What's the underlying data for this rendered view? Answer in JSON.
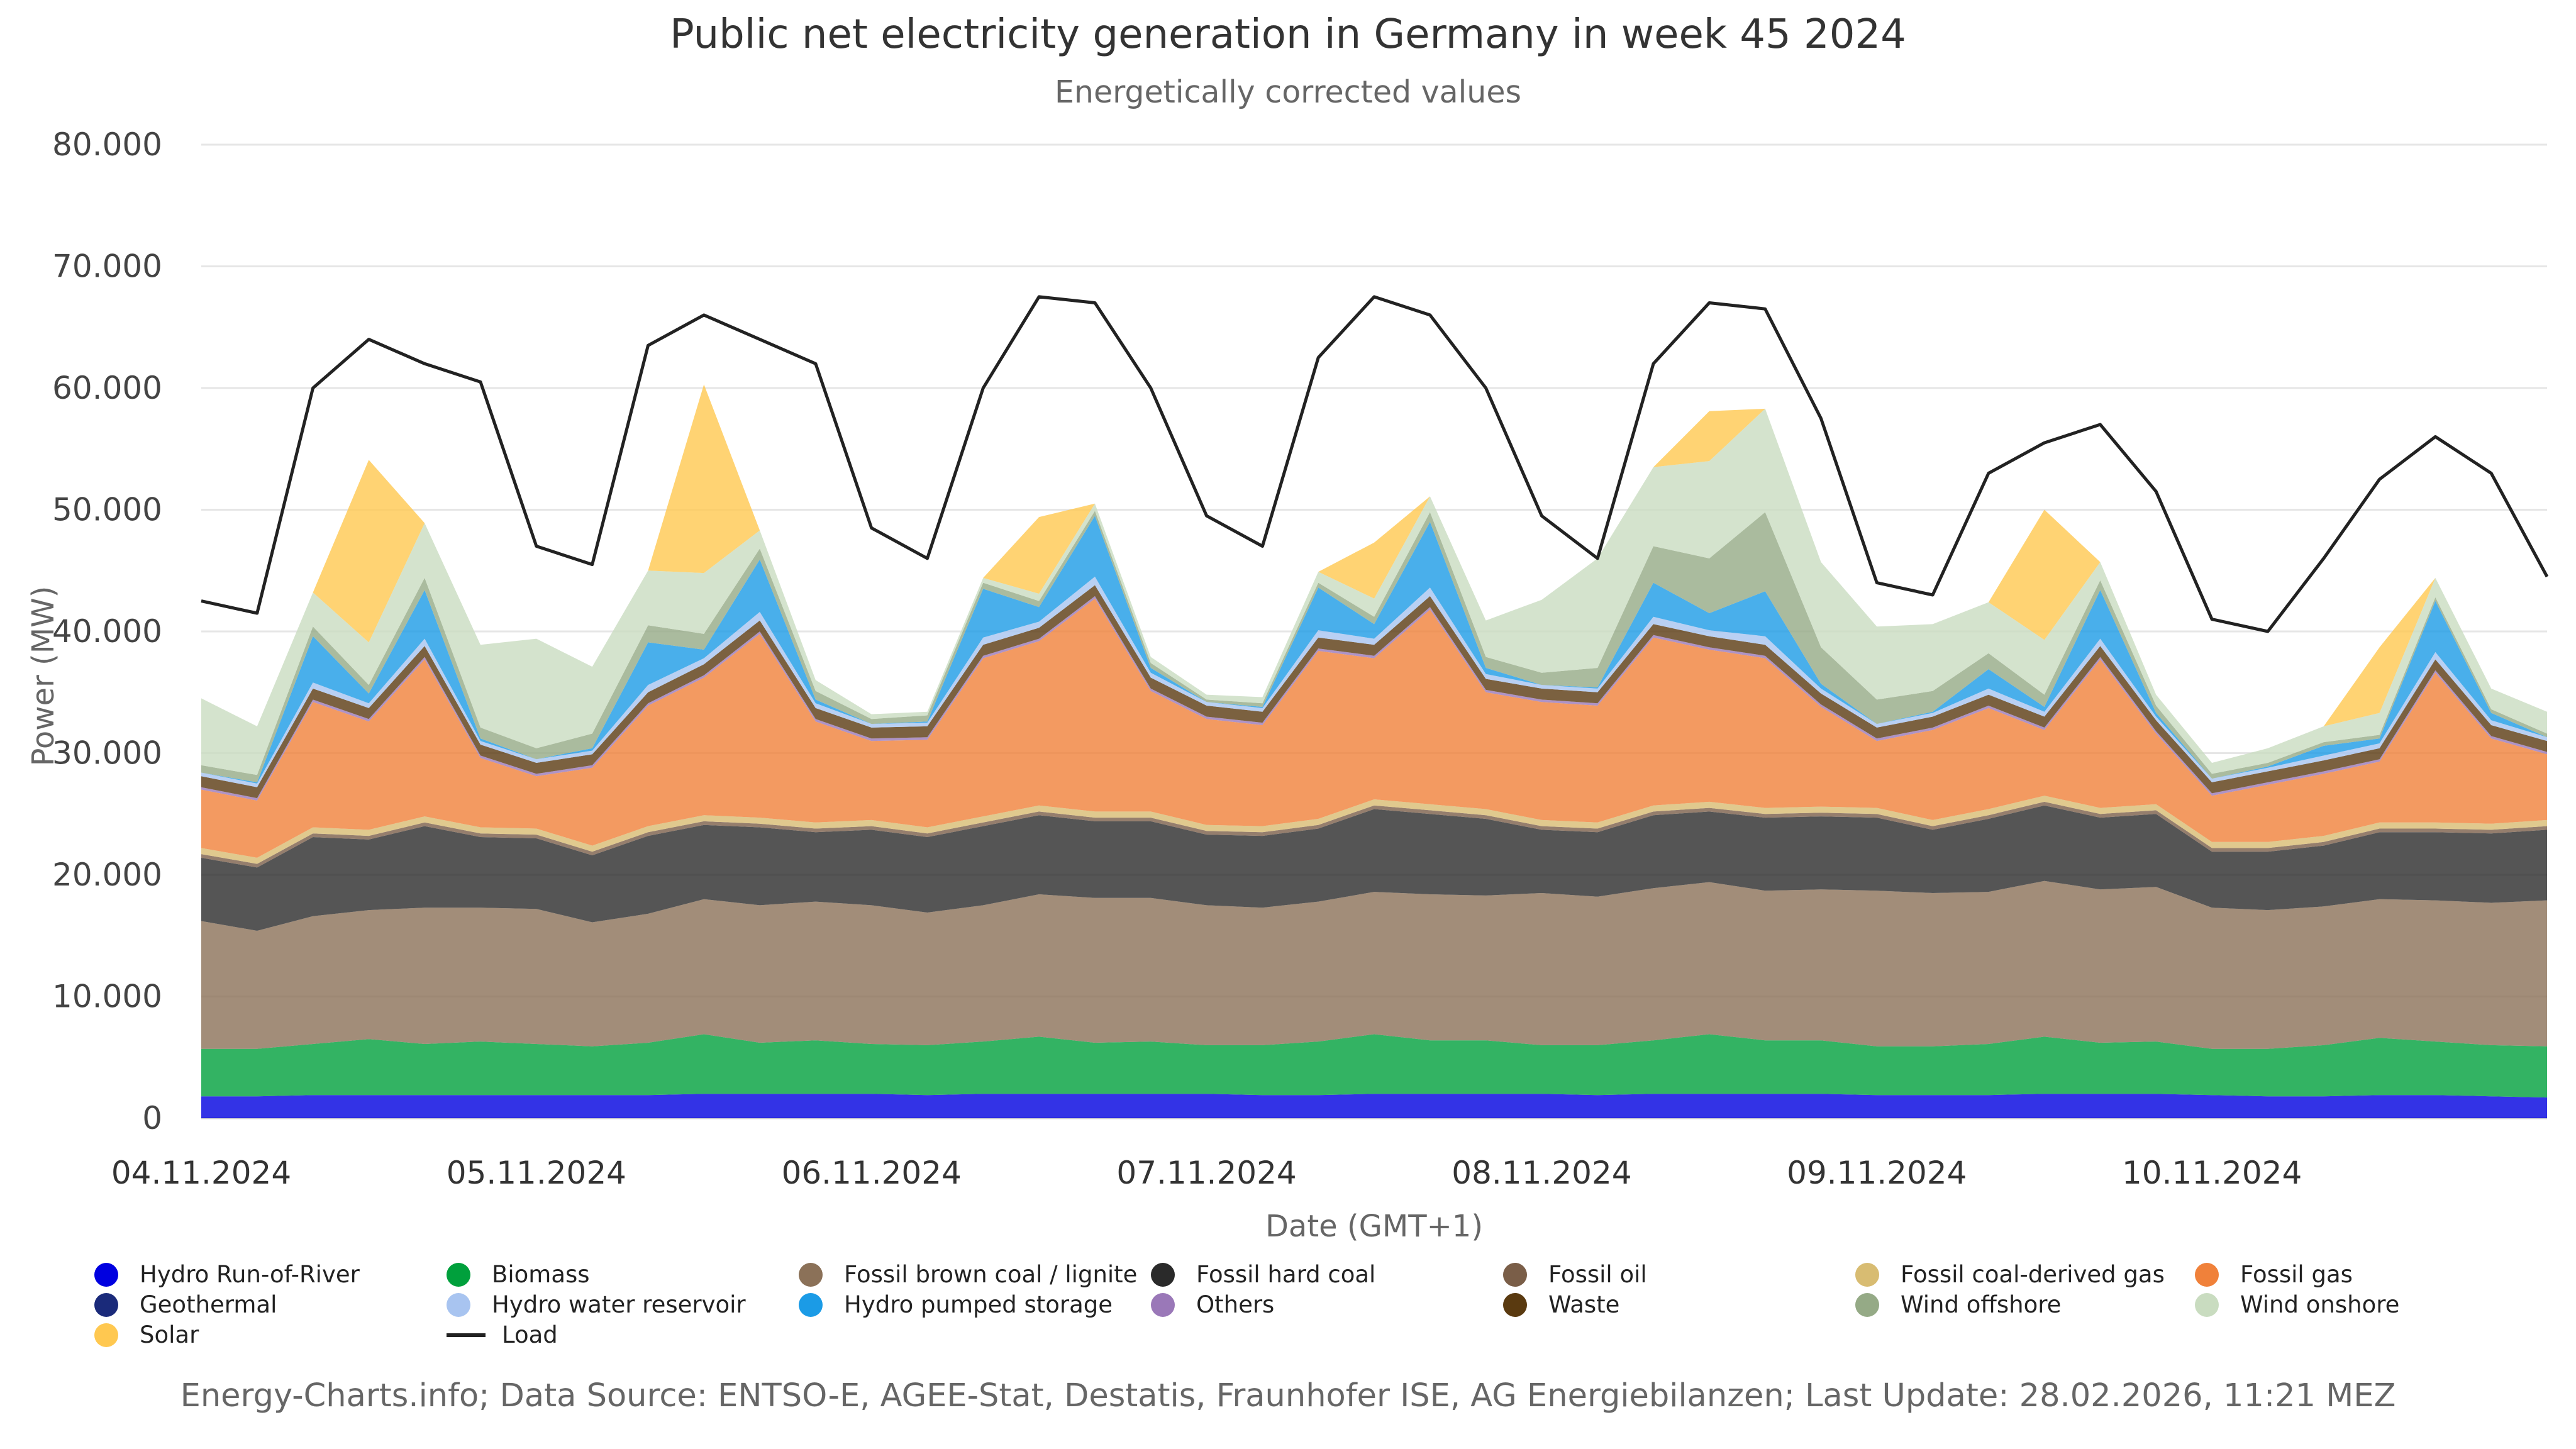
{
  "title": "Public net electricity generation in Germany in week 45 2024",
  "subtitle": "Energetically corrected values",
  "footer": "Energy-Charts.info; Data Source: ENTSO-E, AGEE-Stat, Destatis, Fraunhofer ISE, AG Energiebilanzen; Last Update: 28.02.2026, 11:21 MEZ",
  "chart_data": {
    "type": "area",
    "stacked": true,
    "title": "Public net electricity generation in Germany in week 45 2024",
    "subtitle": "Energetically corrected values",
    "xlabel": "Date (GMT+1)",
    "ylabel": "Power (MW)",
    "ylim": [
      0,
      80000
    ],
    "y_ticks": [
      "0",
      "10.000",
      "20.000",
      "30.000",
      "40.000",
      "50.000",
      "60.000",
      "70.000",
      "80.000"
    ],
    "x_ticks": [
      "04.11.2024",
      "05.11.2024",
      "06.11.2024",
      "07.11.2024",
      "08.11.2024",
      "09.11.2024",
      "10.11.2024"
    ],
    "x": [
      "04.11 00:00",
      "04.11 04:00",
      "04.11 08:00",
      "04.11 12:00",
      "04.11 16:00",
      "04.11 20:00",
      "05.11 00:00",
      "05.11 04:00",
      "05.11 08:00",
      "05.11 12:00",
      "05.11 16:00",
      "05.11 20:00",
      "06.11 00:00",
      "06.11 04:00",
      "06.11 08:00",
      "06.11 12:00",
      "06.11 16:00",
      "06.11 20:00",
      "07.11 00:00",
      "07.11 04:00",
      "07.11 08:00",
      "07.11 12:00",
      "07.11 16:00",
      "07.11 20:00",
      "08.11 00:00",
      "08.11 04:00",
      "08.11 08:00",
      "08.11 12:00",
      "08.11 16:00",
      "08.11 20:00",
      "09.11 00:00",
      "09.11 04:00",
      "09.11 08:00",
      "09.11 12:00",
      "09.11 16:00",
      "09.11 20:00",
      "10.11 00:00",
      "10.11 04:00",
      "10.11 08:00",
      "10.11 12:00",
      "10.11 16:00",
      "10.11 20:00",
      "10.11 24:00"
    ],
    "grid": true,
    "legend_position": "bottom",
    "series": [
      {
        "name": "Hydro Run-of-River",
        "color": "#0000e0",
        "in_legend": true,
        "values": [
          1800,
          1800,
          1900,
          1900,
          1900,
          1900,
          1900,
          1900,
          1900,
          2000,
          2000,
          2000,
          2000,
          1900,
          2000,
          2000,
          2000,
          2000,
          2000,
          1900,
          1900,
          2000,
          2000,
          2000,
          2000,
          1900,
          2000,
          2000,
          2000,
          2000,
          1900,
          1900,
          1900,
          2000,
          2000,
          2000,
          1900,
          1800,
          1800,
          1900,
          1900,
          1800,
          1700
        ]
      },
      {
        "name": "Biomass",
        "color": "#00a03c",
        "in_legend": true,
        "values": [
          3900,
          3900,
          4200,
          4600,
          4200,
          4400,
          4200,
          4000,
          4300,
          4900,
          4200,
          4400,
          4100,
          4100,
          4300,
          4700,
          4200,
          4300,
          4000,
          4100,
          4400,
          4900,
          4400,
          4400,
          4000,
          4100,
          4400,
          4900,
          4400,
          4400,
          4000,
          4000,
          4200,
          4700,
          4200,
          4300,
          3800,
          3900,
          4200,
          4700,
          4400,
          4200,
          4200
        ]
      },
      {
        "name": "Fossil brown coal / lignite",
        "color": "#8b7158",
        "in_legend": true,
        "values": [
          10500,
          9700,
          10500,
          10600,
          11200,
          11000,
          11100,
          10200,
          10600,
          11100,
          11300,
          11400,
          11400,
          10900,
          11200,
          11700,
          11900,
          11800,
          11500,
          11300,
          11500,
          11700,
          12000,
          11900,
          12500,
          12200,
          12500,
          12500,
          12300,
          12400,
          12800,
          12600,
          12500,
          12800,
          12600,
          12700,
          11600,
          11400,
          11400,
          11400,
          11600,
          11700,
          12000
        ]
      },
      {
        "name": "Fossil hard coal",
        "color": "#2a2a2a",
        "in_legend": true,
        "values": [
          5200,
          5200,
          6500,
          5800,
          6700,
          5800,
          5800,
          5500,
          6400,
          6100,
          6400,
          5700,
          6200,
          6200,
          6500,
          6500,
          6300,
          6300,
          5800,
          5900,
          6000,
          6800,
          6600,
          6300,
          5200,
          5300,
          6000,
          5800,
          6000,
          6000,
          6000,
          5200,
          6000,
          6200,
          5900,
          6000,
          4600,
          4800,
          5000,
          5500,
          5600,
          5700,
          5800
        ]
      },
      {
        "name": "Fossil oil",
        "color": "#7a5e48",
        "in_legend": true,
        "values": [
          300,
          300,
          300,
          300,
          300,
          300,
          300,
          300,
          300,
          300,
          300,
          300,
          300,
          300,
          300,
          300,
          300,
          300,
          300,
          300,
          300,
          300,
          300,
          300,
          300,
          300,
          300,
          300,
          300,
          300,
          300,
          300,
          300,
          300,
          300,
          300,
          300,
          300,
          300,
          300,
          300,
          300,
          300
        ]
      },
      {
        "name": "Fossil coal-derived gas",
        "color": "#d8bc72",
        "in_legend": true,
        "values": [
          500,
          500,
          500,
          500,
          500,
          500,
          500,
          500,
          500,
          500,
          500,
          500,
          500,
          500,
          500,
          500,
          500,
          500,
          500,
          500,
          500,
          500,
          500,
          500,
          500,
          500,
          500,
          500,
          500,
          500,
          500,
          500,
          500,
          500,
          500,
          500,
          500,
          500,
          500,
          500,
          500,
          500,
          500
        ]
      },
      {
        "name": "Fossil gas",
        "color": "#f0813a",
        "in_legend": true,
        "values": [
          4800,
          4700,
          10300,
          8900,
          12900,
          5700,
          4300,
          6400,
          9900,
          11300,
          15100,
          8300,
          6500,
          7200,
          13000,
          13500,
          17500,
          9900,
          8700,
          8300,
          13800,
          11600,
          16000,
          9600,
          9700,
          9600,
          13800,
          12500,
          12300,
          8200,
          5500,
          7400,
          8300,
          5400,
          12200,
          5800,
          3800,
          4700,
          5100,
          5000,
          12300,
          7000,
          5400
        ]
      },
      {
        "name": "Others",
        "color": "#9a78b8",
        "in_legend": true,
        "values": [
          200,
          200,
          200,
          200,
          200,
          200,
          200,
          200,
          200,
          200,
          200,
          200,
          200,
          200,
          200,
          200,
          200,
          200,
          200,
          200,
          200,
          200,
          200,
          200,
          200,
          200,
          200,
          200,
          200,
          200,
          200,
          200,
          200,
          200,
          200,
          200,
          200,
          200,
          200,
          200,
          200,
          200,
          200
        ]
      },
      {
        "name": "Waste",
        "color": "#5a3a10",
        "in_legend": true,
        "values": [
          900,
          900,
          900,
          900,
          900,
          900,
          900,
          900,
          900,
          900,
          900,
          900,
          900,
          900,
          900,
          900,
          900,
          900,
          900,
          900,
          900,
          900,
          900,
          900,
          900,
          900,
          900,
          900,
          900,
          900,
          900,
          900,
          900,
          900,
          900,
          900,
          900,
          900,
          900,
          900,
          900,
          900,
          900
        ]
      },
      {
        "name": "Hydro water reservoir",
        "color": "#a8c4f0",
        "in_legend": true,
        "values": [
          300,
          300,
          500,
          400,
          600,
          300,
          300,
          300,
          600,
          500,
          700,
          400,
          300,
          300,
          600,
          500,
          700,
          400,
          300,
          300,
          600,
          500,
          700,
          400,
          300,
          300,
          600,
          500,
          700,
          400,
          300,
          300,
          500,
          400,
          600,
          300,
          300,
          300,
          400,
          400,
          600,
          400,
          300
        ]
      },
      {
        "name": "Hydro pumped storage",
        "color": "#1b9be6",
        "in_legend": true,
        "values": [
          0,
          100,
          3800,
          800,
          4000,
          200,
          0,
          200,
          3500,
          700,
          4300,
          300,
          0,
          100,
          4000,
          1200,
          5000,
          400,
          0,
          100,
          3500,
          1200,
          5400,
          500,
          0,
          100,
          2800,
          1400,
          3700,
          400,
          0,
          100,
          1600,
          400,
          4000,
          300,
          0,
          100,
          800,
          400,
          4200,
          600,
          0
        ]
      },
      {
        "name": "Wind offshore",
        "color": "#95aa86",
        "in_legend": true,
        "values": [
          600,
          600,
          800,
          700,
          1000,
          900,
          900,
          1200,
          1400,
          1300,
          900,
          700,
          400,
          500,
          500,
          500,
          400,
          400,
          200,
          300,
          400,
          600,
          800,
          900,
          1000,
          1600,
          3000,
          4500,
          6500,
          3000,
          2000,
          1700,
          1300,
          1000,
          800,
          600,
          400,
          300,
          300,
          300,
          300,
          300,
          300
        ]
      },
      {
        "name": "Wind onshore",
        "color": "#c9dcc0",
        "in_legend": true,
        "values": [
          5500,
          4000,
          2800,
          3500,
          4500,
          6800,
          9000,
          5500,
          4500,
          5000,
          1500,
          900,
          400,
          300,
          400,
          600,
          600,
          500,
          400,
          500,
          900,
          1500,
          1300,
          3000,
          6000,
          9000,
          6500,
          8000,
          8500,
          7000,
          6000,
          5500,
          4200,
          4500,
          1500,
          900,
          900,
          1200,
          1300,
          1800,
          1600,
          1700,
          1800
        ]
      },
      {
        "name": "Solar",
        "color": "#ffc850",
        "in_legend": true,
        "values": [
          0,
          0,
          0,
          15000,
          0,
          0,
          0,
          0,
          0,
          15500,
          0,
          0,
          0,
          0,
          0,
          6300,
          0,
          0,
          0,
          0,
          0,
          4600,
          0,
          0,
          0,
          0,
          0,
          4100,
          0,
          0,
          0,
          0,
          0,
          10700,
          0,
          0,
          0,
          0,
          0,
          5400,
          0,
          0,
          0
        ]
      },
      {
        "name": "Geothermal",
        "color": "#1a2a7a",
        "in_legend": true,
        "values": null
      },
      {
        "name": "Load",
        "color": "#222222",
        "in_legend": true,
        "line": true,
        "values": [
          42500,
          41500,
          60000,
          64000,
          62000,
          60500,
          47000,
          45500,
          63500,
          66000,
          64000,
          62000,
          48500,
          46000,
          60000,
          67500,
          67000,
          60000,
          49500,
          47000,
          62500,
          67500,
          66000,
          60000,
          49500,
          46000,
          62000,
          67000,
          66500,
          57500,
          44000,
          43000,
          53000,
          55500,
          57000,
          51500,
          41000,
          40000,
          46000,
          52500,
          56000,
          53000,
          44500
        ]
      }
    ]
  }
}
